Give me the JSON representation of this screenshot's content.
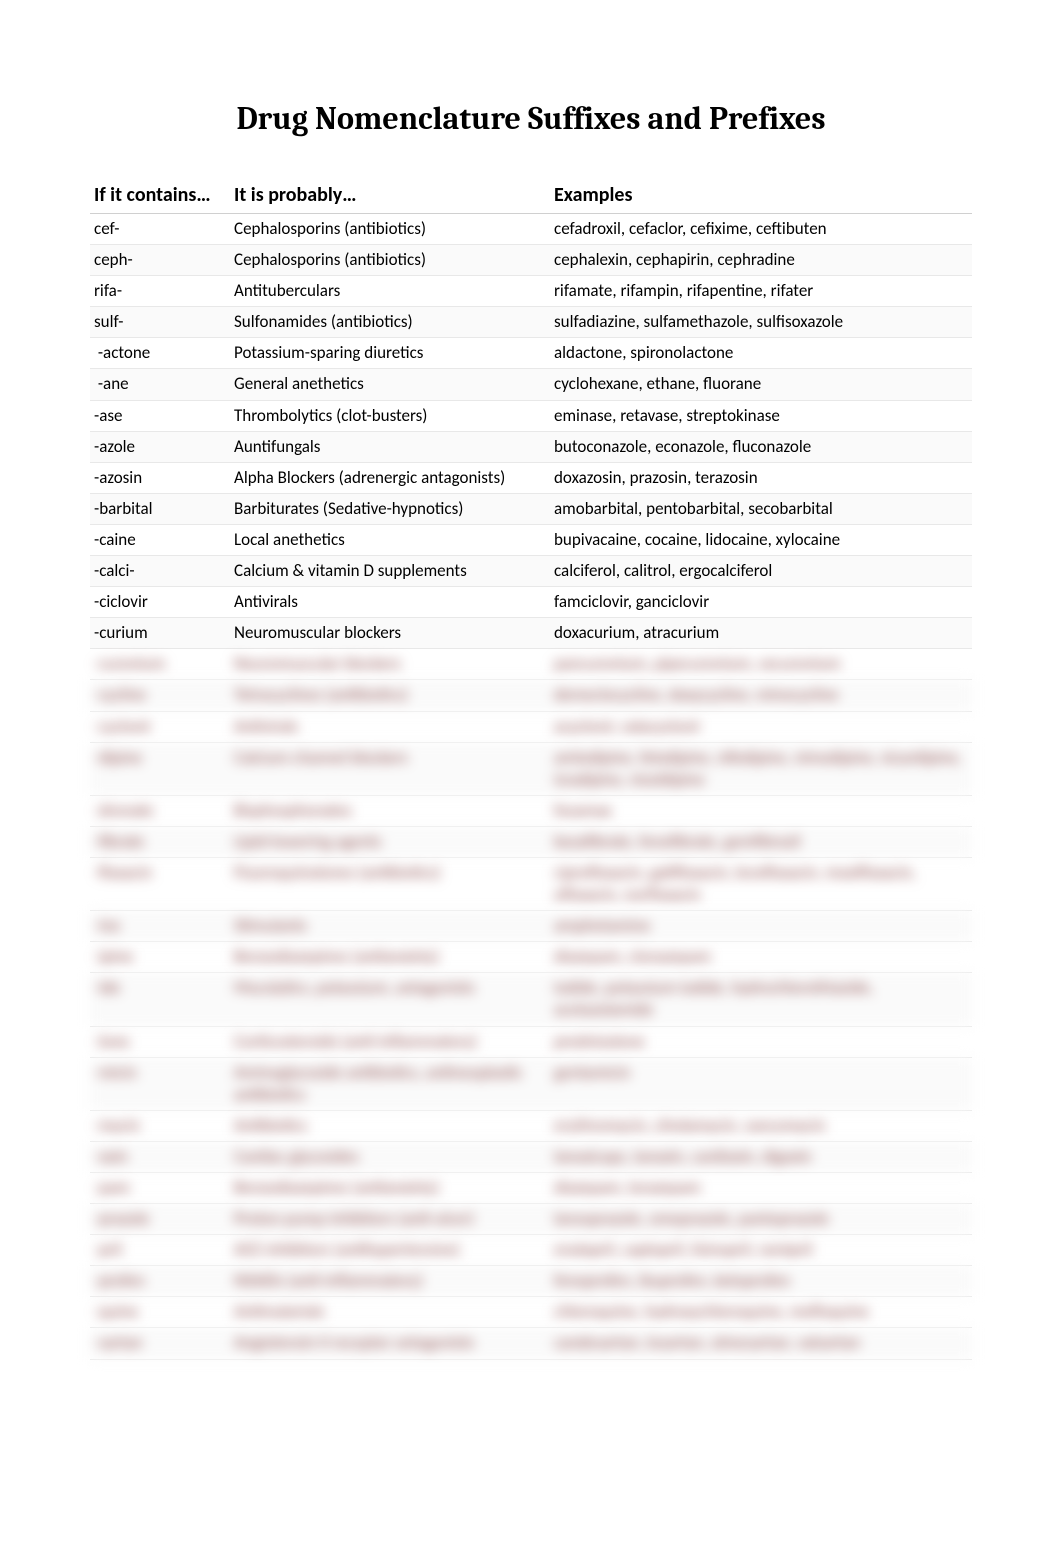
{
  "title": "Drug Nomenclature Suffixes and Prefixes",
  "headers": {
    "affix": "If it contains…",
    "class": "It is probably…",
    "examples": "Examples"
  },
  "rows": [
    {
      "affix": "cef-",
      "class": "Cephalosporins (antibiotics)",
      "examples": "cefadroxil, cefaclor, cefixime, ceftibuten",
      "blurred": false
    },
    {
      "affix": "ceph-",
      "class": "Cephalosporins (antibiotics)",
      "examples": "cephalexin, cephapirin, cephradine",
      "blurred": false
    },
    {
      "affix": "rifa-",
      "class": "Antituberculars",
      "examples": "rifamate, rifampin, rifapentine, rifater",
      "blurred": false
    },
    {
      "affix": "sulf-",
      "class": "Sulfonamides (antibiotics)",
      "examples": "sulfadiazine, sulfamethazole, sulfisoxazole",
      "blurred": false
    },
    {
      "affix": " -actone",
      "class": "Potassium-sparing diuretics",
      "examples": "aldactone, spironolactone",
      "blurred": false
    },
    {
      "affix": " -ane",
      "class": "General anethetics",
      "examples": "cyclohexane, ethane, fluorane",
      "blurred": false
    },
    {
      "affix": "-ase",
      "class": "Thrombolytics (clot-busters)",
      "examples": "eminase, retavase, streptokinase",
      "blurred": false
    },
    {
      "affix": "-azole",
      "class": "Auntifungals",
      "examples": "butoconazole, econazole, fluconazole",
      "blurred": false
    },
    {
      "affix": "-azosin",
      "class": "Alpha Blockers (adrenergic antagonists)",
      "examples": "doxazosin, prazosin, terazosin",
      "blurred": false
    },
    {
      "affix": "-barbital",
      "class": "Barbiturates (Sedative-hypnotics)",
      "examples": "amobarbital, pentobarbital, secobarbital",
      "blurred": false
    },
    {
      "affix": "-caine",
      "class": "Local anethetics",
      "examples": "bupivacaine, cocaine, lidocaine, xylocaine",
      "blurred": false
    },
    {
      "affix": "-calci-",
      "class": "Calcium & vitamin D supplements",
      "examples": "calciferol, calitrol, ergocalciferol",
      "blurred": false
    },
    {
      "affix": "-ciclovir",
      "class": "Antivirals",
      "examples": "famciclovir, ganciclovir",
      "blurred": false
    },
    {
      "affix": "-curium",
      "class": "Neuromuscular blockers",
      "examples": "doxacurium, atracurium",
      "blurred": false
    },
    {
      "affix": "-curonium",
      "class": "Neuromuscular blockers",
      "examples": "pancuronium, pipecuronium, vecuronium",
      "blurred": true
    },
    {
      "affix": "-cycline",
      "class": "Tetracyclines (antibiotics)",
      "examples": "demeclocycline, doxycycline, minocycline",
      "blurred": true
    },
    {
      "affix": "-cyclovir",
      "class": "Antivirals",
      "examples": "acyclovir, valacyclovir",
      "blurred": true
    },
    {
      "affix": "-dipine",
      "class": "Calcium channel blockers",
      "examples": "amlodipine, felodipine, nifedipine, nimodipine, nicardipine, isradipine, nisoldipine",
      "blurred": true
    },
    {
      "affix": "-dronate",
      "class": "Bisphosphonates",
      "examples": "fosamax",
      "blurred": true
    },
    {
      "affix": "-fibrate",
      "class": "Lipid-lowering agents",
      "examples": "bezafibrate, fenofibrate, gemfibrozil",
      "blurred": true
    },
    {
      "affix": "-floxacin",
      "class": "Fluoroquinolones (antibiotics)",
      "examples": "ciprofloxacin, gatifloxacin, levofloxacin, moxifloxacin, ofloxacin, norfloxacin",
      "blurred": true
    },
    {
      "affix": "-ine",
      "class": "Stimulants",
      "examples": "amphetamine",
      "blurred": true
    },
    {
      "affix": "-ipine",
      "class": "Benzodiazepines (antianxiety)",
      "examples": "diazepam, clonazepam",
      "blurred": true
    },
    {
      "affix": "-ide",
      "class": "Mucolytics, potassium, antagonists",
      "examples": "iodide, potassium iodide, hydrochlorothiazide, acetazolamide",
      "blurred": true
    },
    {
      "affix": "-lone",
      "class": "Corticosteroids (anti-inflammatory)",
      "examples": "prednisolone",
      "blurred": true
    },
    {
      "affix": "-micin",
      "class": "Aminoglycoside antibiotics, antineoplastic antibiotics",
      "examples": "gentamicin",
      "blurred": true
    },
    {
      "affix": "-mycin",
      "class": "Antibiotics",
      "examples": "erythromycin, clindamycin, vancomycin",
      "blurred": true
    },
    {
      "affix": "-oxin",
      "class": "Cardiac glycosides",
      "examples": "lanoxicaps, lanoxin, cardioxin, digoxin",
      "blurred": true
    },
    {
      "affix": "-pam",
      "class": "Benzodiazepines (antianxiety)",
      "examples": "diazepam, lorazepam",
      "blurred": true
    },
    {
      "affix": "-prazole",
      "class": "Proton pump inhibitors (anti-ulcer)",
      "examples": "lansoprazole, omeprazole, pantoprazole",
      "blurred": true
    },
    {
      "affix": "-pril",
      "class": "ACE inhibitors (antihypertensive)",
      "examples": "enalapril, captopril, lisinopril, ramipril",
      "blurred": true
    },
    {
      "affix": "-profen",
      "class": "NSAIDs (anti-inflammatory)",
      "examples": "fenoprofen, ibuprofen, ketoprofen",
      "blurred": true
    },
    {
      "affix": "-quine",
      "class": "Antimalarials",
      "examples": "chloroquine, hydroxychloroquine, mefloquine",
      "blurred": true
    },
    {
      "affix": "-sartan",
      "class": "Angiotensin II receptor antagonists",
      "examples": "candesartan, losartan, olmesartan, valsartan",
      "blurred": true
    }
  ]
}
